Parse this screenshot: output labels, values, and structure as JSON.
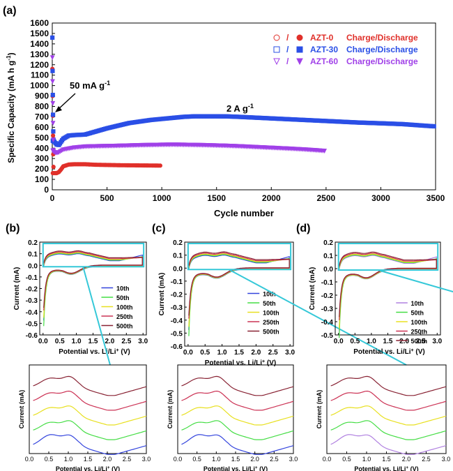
{
  "figure": {
    "panel_labels": [
      "(a)",
      "(b)",
      "(c)",
      "(d)"
    ],
    "annotation_low_rate": "50 mA g",
    "annotation_high_rate": "2 A g"
  },
  "chart_data": [
    {
      "id": "a",
      "type": "scatter",
      "xlabel": "Cycle number",
      "ylabel": "Specific Capacity (mA h g",
      "xlim": [
        0,
        3500
      ],
      "ylim": [
        0,
        1600
      ],
      "xticks": [
        0,
        500,
        1000,
        1500,
        2000,
        2500,
        3000,
        3500
      ],
      "yticks": [
        0,
        100,
        200,
        300,
        400,
        500,
        600,
        700,
        800,
        900,
        1000,
        1100,
        1200,
        1300,
        1400,
        1500,
        1600
      ],
      "legend_position": "top-right",
      "legend": [
        {
          "series": "AZT-0",
          "label": "Charge/Discharge",
          "color": "#e0302a",
          "open": "circle",
          "filled": "circle"
        },
        {
          "series": "AZT-30",
          "label": "Charge/Discharge",
          "color": "#2a4fe6",
          "open": "square",
          "filled": "square"
        },
        {
          "series": "AZT-60",
          "label": "Charge/Discharge",
          "color": "#a040e8",
          "open": "triangle-down",
          "filled": "triangle-down"
        }
      ],
      "series": [
        {
          "name": "AZT-0",
          "color": "#e0302a",
          "points": [
            [
              5,
              160
            ],
            [
              40,
              160
            ],
            [
              60,
              170
            ],
            [
              80,
              195
            ],
            [
              100,
              225
            ],
            [
              150,
              242
            ],
            [
              200,
              245
            ],
            [
              300,
              245
            ],
            [
              400,
              240
            ],
            [
              500,
              238
            ],
            [
              600,
              236
            ],
            [
              700,
              235
            ],
            [
              800,
              234
            ],
            [
              900,
              233
            ],
            [
              1000,
              232
            ]
          ],
          "initial": [
            [
              1,
              1160
            ],
            [
              3,
              900
            ],
            [
              5,
              710
            ],
            [
              7,
              520
            ],
            [
              9,
              340
            ],
            [
              11,
              220
            ]
          ]
        },
        {
          "name": "AZT-30",
          "color": "#2a4fe6",
          "points": [
            [
              5,
              470
            ],
            [
              20,
              460
            ],
            [
              40,
              435
            ],
            [
              60,
              430
            ],
            [
              80,
              460
            ],
            [
              100,
              490
            ],
            [
              150,
              520
            ],
            [
              200,
              525
            ],
            [
              300,
              530
            ],
            [
              400,
              560
            ],
            [
              500,
              590
            ],
            [
              600,
              615
            ],
            [
              700,
              640
            ],
            [
              800,
              655
            ],
            [
              900,
              670
            ],
            [
              1000,
              680
            ],
            [
              1100,
              690
            ],
            [
              1200,
              700
            ],
            [
              1300,
              705
            ],
            [
              1400,
              705
            ],
            [
              1500,
              705
            ],
            [
              1600,
              704
            ],
            [
              1700,
              700
            ],
            [
              1800,
              695
            ],
            [
              1900,
              690
            ],
            [
              2000,
              685
            ],
            [
              2200,
              675
            ],
            [
              2400,
              665
            ],
            [
              2600,
              655
            ],
            [
              2800,
              645
            ],
            [
              3000,
              638
            ],
            [
              3200,
              630
            ],
            [
              3400,
              615
            ],
            [
              3500,
              608
            ]
          ],
          "initial": [
            [
              1,
              1460
            ],
            [
              3,
              1140
            ],
            [
              5,
              910
            ],
            [
              7,
              720
            ],
            [
              9,
              560
            ],
            [
              11,
              480
            ]
          ]
        },
        {
          "name": "AZT-60",
          "color": "#a040e8",
          "points": [
            [
              5,
              375
            ],
            [
              20,
              360
            ],
            [
              40,
              355
            ],
            [
              60,
              360
            ],
            [
              100,
              385
            ],
            [
              200,
              405
            ],
            [
              300,
              415
            ],
            [
              400,
              418
            ],
            [
              500,
              420
            ],
            [
              600,
              422
            ],
            [
              700,
              425
            ],
            [
              800,
              428
            ],
            [
              900,
              430
            ],
            [
              1000,
              432
            ],
            [
              1100,
              433
            ],
            [
              1200,
              432
            ],
            [
              1300,
              430
            ],
            [
              1400,
              428
            ],
            [
              1500,
              425
            ],
            [
              1600,
              422
            ],
            [
              1700,
              418
            ],
            [
              1800,
              413
            ],
            [
              1900,
              408
            ],
            [
              2000,
              403
            ],
            [
              2100,
              398
            ],
            [
              2200,
              393
            ],
            [
              2300,
              387
            ],
            [
              2400,
              380
            ],
            [
              2500,
              372
            ]
          ],
          "initial": [
            [
              1,
              1270
            ],
            [
              3,
              1040
            ],
            [
              5,
              830
            ],
            [
              7,
              640
            ],
            [
              9,
              480
            ],
            [
              11,
              380
            ]
          ]
        }
      ]
    },
    {
      "id": "b",
      "type": "line",
      "xlabel": "Potential vs. Li/Li",
      "ylabel": "Current (mA)",
      "xlim": [
        -0.1,
        3.1
      ],
      "ylim": [
        -0.6,
        0.2
      ],
      "xticks": [
        0.0,
        0.5,
        1.0,
        1.5,
        2.0,
        2.5,
        3.0
      ],
      "yticks": [
        0.2,
        0.1,
        0.0,
        -0.1,
        -0.2,
        -0.3,
        -0.4,
        -0.5,
        -0.6
      ],
      "legend": [
        "10th",
        "50th",
        "100th",
        "250th",
        "500th"
      ],
      "colors": [
        "#3344dd",
        "#44dd44",
        "#e8e020",
        "#cc3355",
        "#882233"
      ],
      "inset_xlabel": "Potential vs. Li/Li",
      "inset_ylabel": "Current (mA)",
      "inset_xticks": [
        0.0,
        0.5,
        1.0,
        1.5,
        2.0,
        2.5,
        3.0
      ]
    },
    {
      "id": "c",
      "type": "line",
      "xlabel": "Potential vs. Li/Li",
      "ylabel": "Current (mA)",
      "xlim": [
        -0.1,
        3.1
      ],
      "ylim": [
        -0.6,
        0.2
      ],
      "xticks": [
        0.0,
        0.5,
        1.0,
        1.5,
        2.0,
        2.5,
        3.0
      ],
      "yticks": [
        0.2,
        0.1,
        0.0,
        -0.1,
        -0.2,
        -0.3,
        -0.4,
        -0.5,
        -0.6
      ],
      "legend": [
        "10th",
        "50th",
        "100th",
        "250th",
        "500th"
      ],
      "colors": [
        "#3344dd",
        "#44dd44",
        "#e8e020",
        "#cc3355",
        "#882233"
      ],
      "inset_xlabel": "Potential vs. Li/Li",
      "inset_ylabel": "Current (mA)",
      "inset_xticks": [
        0.0,
        0.5,
        1.0,
        1.5,
        2.0,
        2.5,
        3.0
      ]
    },
    {
      "id": "d",
      "type": "line",
      "xlabel": "Potential vs. Li/Li",
      "ylabel": "Current (mA)",
      "xlim": [
        -0.1,
        3.1
      ],
      "ylim": [
        -0.5,
        0.2
      ],
      "xticks": [
        0.0,
        0.5,
        1.0,
        1.5,
        2.0,
        2.5,
        3.0
      ],
      "yticks": [
        0.2,
        0.1,
        0.0,
        -0.1,
        -0.2,
        -0.3,
        -0.4,
        -0.5
      ],
      "legend": [
        "10th",
        "50th",
        "100th",
        "250th",
        "500th"
      ],
      "colors": [
        "#b080e0",
        "#44dd44",
        "#e8e020",
        "#cc3355",
        "#882233"
      ],
      "inset_xlabel": "Potential vs. Li/Li",
      "inset_ylabel": "Current (mA)",
      "inset_xticks": [
        0.0,
        0.5,
        1.0,
        1.5,
        2.0,
        2.5,
        3.0
      ]
    }
  ]
}
